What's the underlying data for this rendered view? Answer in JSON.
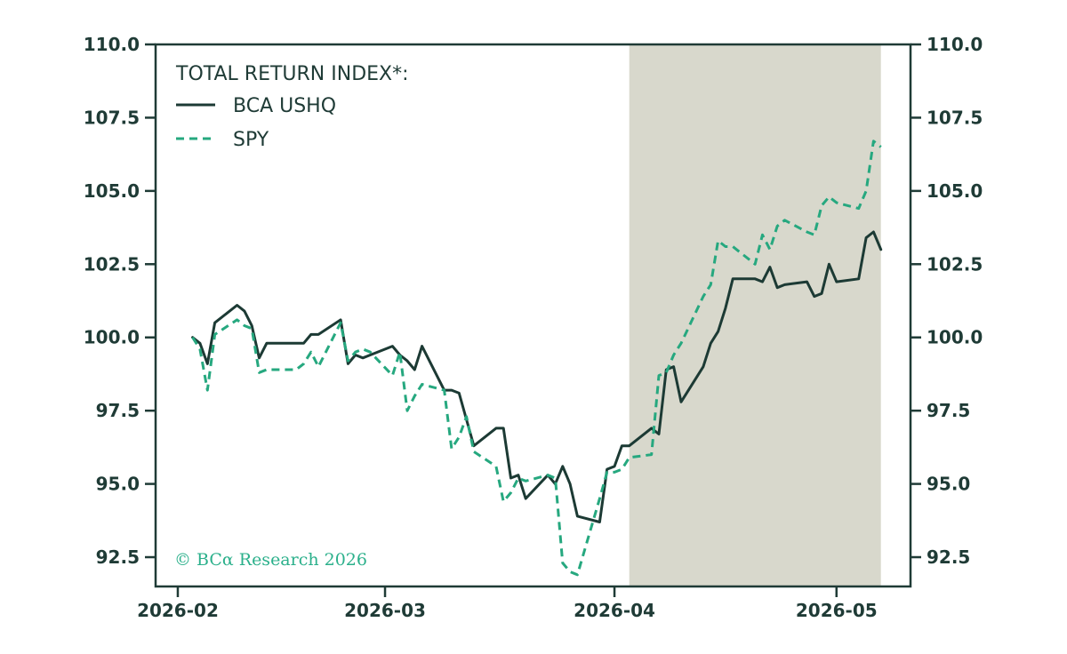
{
  "chart_data": {
    "type": "line",
    "title": "",
    "xlabel": "",
    "ylabel": "",
    "ylim": [
      91.5,
      110.0
    ],
    "y_ticks": [
      92.5,
      95.0,
      97.5,
      100.0,
      102.5,
      105.0,
      107.5,
      110.0
    ],
    "y_tick_labels": [
      "92.5",
      "95.0",
      "97.5",
      "100.0",
      "102.5",
      "105.0",
      "107.5",
      "110.0"
    ],
    "secondary_y_axis": true,
    "x_ticks": [
      "2026-02-01",
      "2026-03-01",
      "2026-04-01",
      "2026-05-01"
    ],
    "x_tick_labels": [
      "2026-02",
      "2026-03",
      "2026-04",
      "2026-05"
    ],
    "xlim": [
      "2026-01-29",
      "2026-05-11"
    ],
    "grid": false,
    "legend_title": "TOTAL RETURN INDEX*:",
    "legend_position": "top-left",
    "shaded_region": {
      "start": "2026-04-03",
      "end": "2026-05-07",
      "color": "#d8d8cc"
    },
    "annotation": "© BCα Research 2026",
    "colors": {
      "axis": "#1f3b36",
      "bca_ushq": "#1c3a34",
      "spy": "#26a87f",
      "annotation": "#2bb08b"
    },
    "series": [
      {
        "name": "BCA USHQ",
        "style": "solid",
        "x": [
          "2026-02-03",
          "2026-02-04",
          "2026-02-05",
          "2026-02-06",
          "2026-02-09",
          "2026-02-10",
          "2026-02-11",
          "2026-02-12",
          "2026-02-13",
          "2026-02-17",
          "2026-02-18",
          "2026-02-19",
          "2026-02-20",
          "2026-02-23",
          "2026-02-24",
          "2026-02-25",
          "2026-02-26",
          "2026-02-27",
          "2026-03-02",
          "2026-03-03",
          "2026-03-04",
          "2026-03-05",
          "2026-03-06",
          "2026-03-09",
          "2026-03-10",
          "2026-03-11",
          "2026-03-12",
          "2026-03-13",
          "2026-03-16",
          "2026-03-17",
          "2026-03-18",
          "2026-03-19",
          "2026-03-20",
          "2026-03-23",
          "2026-03-24",
          "2026-03-25",
          "2026-03-26",
          "2026-03-27",
          "2026-03-30",
          "2026-03-31",
          "2026-04-01",
          "2026-04-02",
          "2026-04-03",
          "2026-04-06",
          "2026-04-07",
          "2026-04-08",
          "2026-04-09",
          "2026-04-10",
          "2026-04-13",
          "2026-04-14",
          "2026-04-15",
          "2026-04-16",
          "2026-04-17",
          "2026-04-20",
          "2026-04-21",
          "2026-04-22",
          "2026-04-23",
          "2026-04-24",
          "2026-04-27",
          "2026-04-28",
          "2026-04-29",
          "2026-04-30",
          "2026-05-01",
          "2026-05-04",
          "2026-05-05",
          "2026-05-06",
          "2026-05-07"
        ],
        "values": [
          100.0,
          99.8,
          99.1,
          100.5,
          101.1,
          100.9,
          100.4,
          99.3,
          99.8,
          99.8,
          99.8,
          100.1,
          100.1,
          100.6,
          99.1,
          99.4,
          99.3,
          99.4,
          99.7,
          99.4,
          99.2,
          98.9,
          99.7,
          98.2,
          98.2,
          98.1,
          97.2,
          96.3,
          96.9,
          96.9,
          95.2,
          95.3,
          94.5,
          95.3,
          95.0,
          95.6,
          95.0,
          93.9,
          93.7,
          95.5,
          95.6,
          96.3,
          96.3,
          96.9,
          96.7,
          98.9,
          99.0,
          97.8,
          99.0,
          99.8,
          100.2,
          101.0,
          102.0,
          102.0,
          101.9,
          102.4,
          101.7,
          101.8,
          101.9,
          101.4,
          101.5,
          102.5,
          101.9,
          102.0,
          103.4,
          103.6,
          103.0
        ]
      },
      {
        "name": "SPY",
        "style": "dashed",
        "x": [
          "2026-02-03",
          "2026-02-04",
          "2026-02-05",
          "2026-02-06",
          "2026-02-09",
          "2026-02-10",
          "2026-02-11",
          "2026-02-12",
          "2026-02-13",
          "2026-02-17",
          "2026-02-18",
          "2026-02-19",
          "2026-02-20",
          "2026-02-23",
          "2026-02-24",
          "2026-02-25",
          "2026-02-26",
          "2026-02-27",
          "2026-03-02",
          "2026-03-03",
          "2026-03-04",
          "2026-03-05",
          "2026-03-06",
          "2026-03-09",
          "2026-03-10",
          "2026-03-11",
          "2026-03-12",
          "2026-03-13",
          "2026-03-16",
          "2026-03-17",
          "2026-03-18",
          "2026-03-19",
          "2026-03-20",
          "2026-03-23",
          "2026-03-24",
          "2026-03-25",
          "2026-03-26",
          "2026-03-27",
          "2026-03-30",
          "2026-03-31",
          "2026-04-01",
          "2026-04-02",
          "2026-04-03",
          "2026-04-06",
          "2026-04-07",
          "2026-04-08",
          "2026-04-09",
          "2026-04-10",
          "2026-04-13",
          "2026-04-14",
          "2026-04-15",
          "2026-04-16",
          "2026-04-17",
          "2026-04-20",
          "2026-04-21",
          "2026-04-22",
          "2026-04-23",
          "2026-04-24",
          "2026-04-27",
          "2026-04-28",
          "2026-04-29",
          "2026-04-30",
          "2026-05-01",
          "2026-05-04",
          "2026-05-05",
          "2026-05-06",
          "2026-05-07"
        ],
        "values": [
          100.0,
          99.6,
          98.2,
          100.1,
          100.6,
          100.4,
          100.3,
          98.8,
          98.9,
          98.9,
          99.1,
          99.5,
          99.0,
          100.5,
          99.2,
          99.5,
          99.6,
          99.5,
          98.7,
          99.5,
          97.5,
          98.0,
          98.4,
          98.2,
          96.2,
          96.6,
          97.3,
          96.1,
          95.6,
          94.4,
          94.7,
          95.2,
          95.1,
          95.3,
          95.2,
          92.3,
          92.0,
          91.9,
          94.5,
          95.4,
          95.4,
          95.5,
          95.9,
          96.0,
          98.7,
          98.8,
          99.4,
          99.8,
          101.4,
          101.8,
          103.3,
          103.1,
          103.1,
          102.5,
          103.5,
          103.0,
          103.8,
          104.0,
          103.6,
          103.5,
          104.5,
          104.8,
          104.6,
          104.4,
          105.0,
          106.7,
          106.5
        ]
      }
    ]
  }
}
